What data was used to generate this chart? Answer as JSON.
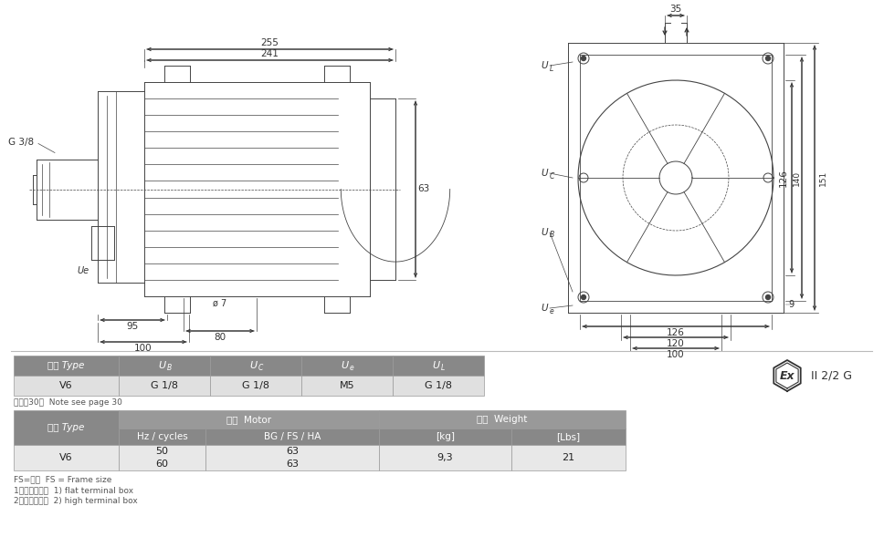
{
  "bg_color": "#ffffff",
  "line_color": "#444444",
  "dim_color": "#333333",
  "table1_header_bg": "#888888",
  "table1_row_bg": "#e0e0e0",
  "table2_header1_bg": "#888888",
  "table2_header2_bg": "#999999",
  "table2_row_bg": "#e8e8e8",
  "table1_row": [
    "V6",
    "G 1/8",
    "G 1/8",
    "M5",
    "G 1/8"
  ],
  "table2_row": [
    "V6",
    "50\n60",
    "63\n63",
    "9,3",
    "21"
  ],
  "note": "注释見30页  Note see page 30",
  "footnotes": [
    "FS=框号  FS = Frame size",
    "1）平顶接线盒  1) flat terminal box",
    "2）标准接线盒  2) high terminal box"
  ],
  "ex_label": "II 2/2 G"
}
